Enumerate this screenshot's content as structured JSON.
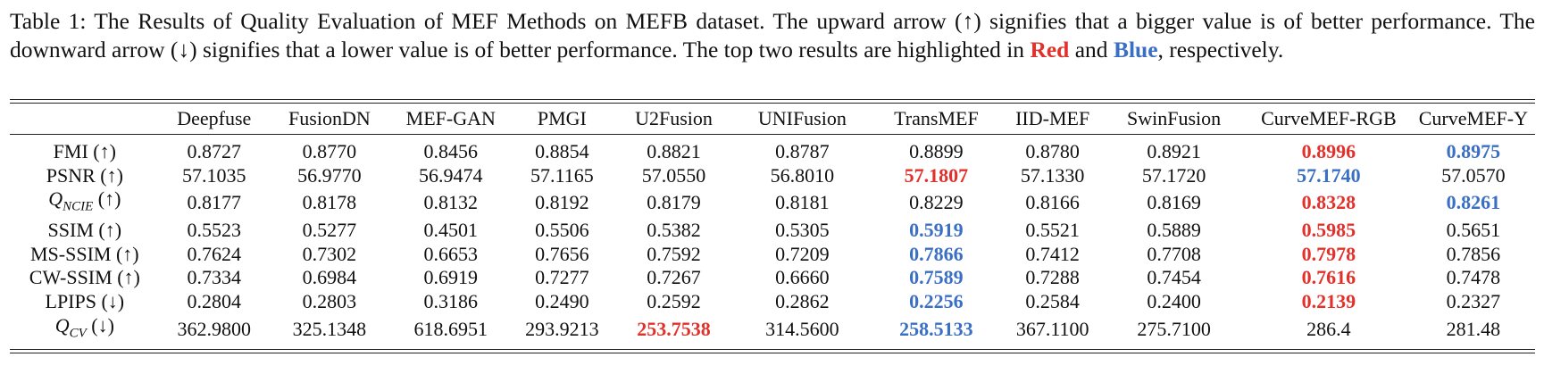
{
  "caption": {
    "part1": "Table 1: The Results of Quality Evaluation of MEF Methods on MEFB dataset. The upward arrow (↑) signifies that a bigger value is of better performance. The downward arrow (↓) signifies that a lower value is of better performance. The top two results are highlighted in ",
    "red_word": "Red",
    "and_word": " and ",
    "blue_word": "Blue",
    "part2": ", respectively."
  },
  "colors": {
    "best": "#e2312b",
    "second": "#3a6fc4"
  },
  "table": {
    "columns": [
      "",
      "Deepfuse",
      "FusionDN",
      "MEF-GAN",
      "PMGI",
      "U2Fusion",
      "UNIFusion",
      "TransMEF",
      "IID-MEF",
      "SwinFusion",
      "CurveMEF-RGB",
      "CurveMEF-Y"
    ],
    "rows": [
      {
        "metric": "FMI (↑)",
        "metric_sub": "",
        "values": [
          "0.8727",
          "0.8770",
          "0.8456",
          "0.8854",
          "0.8821",
          "0.8787",
          "0.8899",
          "0.8780",
          "0.8921",
          "0.8996",
          "0.8975"
        ],
        "highlight": [
          "",
          "",
          "",
          "",
          "",
          "",
          "",
          "",
          "",
          "best",
          "second"
        ]
      },
      {
        "metric": "PSNR (↑)",
        "metric_sub": "",
        "values": [
          "57.1035",
          "56.9770",
          "56.9474",
          "57.1165",
          "57.0550",
          "56.8010",
          "57.1807",
          "57.1330",
          "57.1720",
          "57.1740",
          "57.0570"
        ],
        "highlight": [
          "",
          "",
          "",
          "",
          "",
          "",
          "best",
          "",
          "",
          "second",
          ""
        ]
      },
      {
        "metric": "Q",
        "metric_sub": "NCIE",
        "metric_suffix": " (↑)",
        "values": [
          "0.8177",
          "0.8178",
          "0.8132",
          "0.8192",
          "0.8179",
          "0.8181",
          "0.8229",
          "0.8166",
          "0.8169",
          "0.8328",
          "0.8261"
        ],
        "highlight": [
          "",
          "",
          "",
          "",
          "",
          "",
          "",
          "",
          "",
          "best",
          "second"
        ]
      },
      {
        "metric": "SSIM (↑)",
        "metric_sub": "",
        "values": [
          "0.5523",
          "0.5277",
          "0.4501",
          "0.5506",
          "0.5382",
          "0.5305",
          "0.5919",
          "0.5521",
          "0.5889",
          "0.5985",
          "0.5651"
        ],
        "highlight": [
          "",
          "",
          "",
          "",
          "",
          "",
          "second",
          "",
          "",
          "best",
          ""
        ]
      },
      {
        "metric": "MS-SSIM (↑)",
        "metric_sub": "",
        "values": [
          "0.7624",
          "0.7302",
          "0.6653",
          "0.7656",
          "0.7592",
          "0.7209",
          "0.7866",
          "0.7412",
          "0.7708",
          "0.7978",
          "0.7856"
        ],
        "highlight": [
          "",
          "",
          "",
          "",
          "",
          "",
          "second",
          "",
          "",
          "best",
          ""
        ]
      },
      {
        "metric": "CW-SSIM (↑)",
        "metric_sub": "",
        "values": [
          "0.7334",
          "0.6984",
          "0.6919",
          "0.7277",
          "0.7267",
          "0.6660",
          "0.7589",
          "0.7288",
          "0.7454",
          "0.7616",
          "0.7478"
        ],
        "highlight": [
          "",
          "",
          "",
          "",
          "",
          "",
          "second",
          "",
          "",
          "best",
          ""
        ]
      },
      {
        "metric": "LPIPS (↓)",
        "metric_sub": "",
        "values": [
          "0.2804",
          "0.2803",
          "0.3186",
          "0.2490",
          "0.2592",
          "0.2862",
          "0.2256",
          "0.2584",
          "0.2400",
          "0.2139",
          "0.2327"
        ],
        "highlight": [
          "",
          "",
          "",
          "",
          "",
          "",
          "second",
          "",
          "",
          "best",
          ""
        ]
      },
      {
        "metric": "Q",
        "metric_sub": "CV",
        "metric_suffix": " (↓)",
        "values": [
          "362.9800",
          "325.1348",
          "618.6951",
          "293.9213",
          "253.7538",
          "314.5600",
          "258.5133",
          "367.1100",
          "275.7100",
          "286.4",
          "281.48"
        ],
        "highlight": [
          "",
          "",
          "",
          "",
          "best",
          "",
          "second",
          "",
          "",
          "",
          ""
        ]
      }
    ]
  }
}
